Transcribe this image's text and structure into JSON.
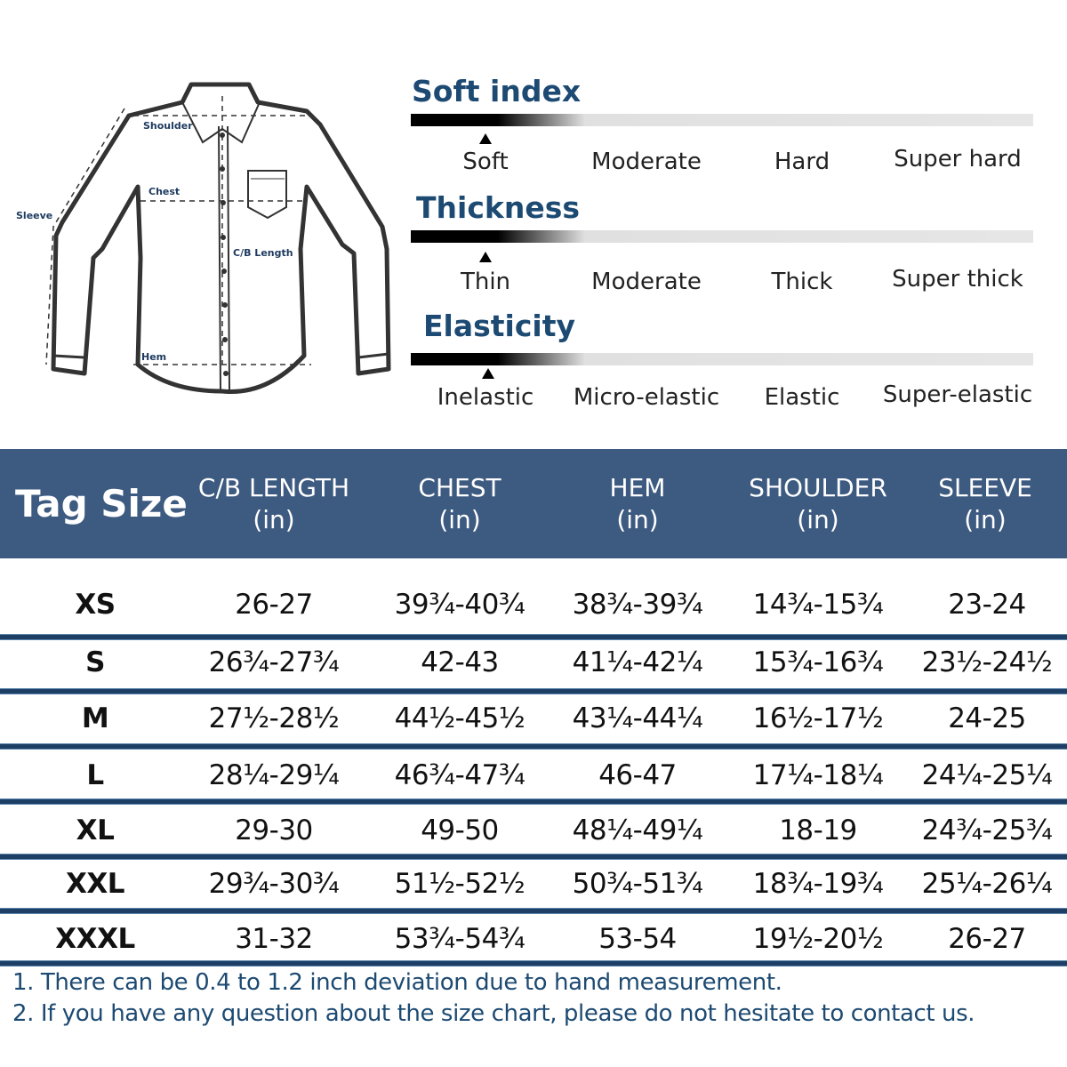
{
  "diagram": {
    "labels": {
      "shoulder": "Shoulder",
      "chest": "Chest",
      "sleeve": "Sleeve",
      "cb_length": "C/B Length",
      "hem": "Hem"
    }
  },
  "scales": [
    {
      "title": "Soft index",
      "options": [
        "Soft",
        "Moderate",
        "Hard",
        "Super hard"
      ],
      "selected": "Soft"
    },
    {
      "title": "Thickness",
      "options": [
        "Thin",
        "Moderate",
        "Thick",
        "Super thick"
      ],
      "selected": "Thin"
    },
    {
      "title": "Elasticity",
      "options": [
        "Inelastic",
        "Micro-elastic",
        "Elastic",
        "Super-elastic"
      ],
      "selected": "Inelastic"
    }
  ],
  "table": {
    "header_color": "#3d5a80",
    "tag_size_label": "Tag Size",
    "columns": [
      {
        "name": "C/B LENGTH",
        "unit": "(in)"
      },
      {
        "name": "CHEST",
        "unit": "(in)"
      },
      {
        "name": "HEM",
        "unit": "(in)"
      },
      {
        "name": "SHOULDER",
        "unit": "(in)"
      },
      {
        "name": "SLEEVE",
        "unit": "(in)"
      }
    ],
    "rows": [
      {
        "size": "XS",
        "values": [
          "26-27",
          "39¾-40¾",
          "38¾-39¾",
          "14¾-15¾",
          "23-24"
        ]
      },
      {
        "size": "S",
        "values": [
          "26¾-27¾",
          "42-43",
          "41¼-42¼",
          "15¾-16¾",
          "23½-24½"
        ]
      },
      {
        "size": "M",
        "values": [
          "27½-28½",
          "44½-45½",
          "43¼-44¼",
          "16½-17½",
          "24-25"
        ]
      },
      {
        "size": "L",
        "values": [
          "28¼-29¼",
          "46¾-47¾",
          "46-47",
          "17¼-18¼",
          "24¼-25¼"
        ]
      },
      {
        "size": "XL",
        "values": [
          "29-30",
          "49-50",
          "48¼-49¼",
          "18-19",
          "24¾-25¾"
        ]
      },
      {
        "size": "XXL",
        "values": [
          "29¾-30¾",
          "51½-52½",
          "50¾-51¾",
          "18¾-19¾",
          "25¼-26¼"
        ]
      },
      {
        "size": "XXXL",
        "values": [
          "31-32",
          "53¾-54¾",
          "53-54",
          "19½-20½",
          "26-27"
        ]
      }
    ]
  },
  "notes": [
    "1. There can be 0.4 to 1.2 inch deviation due to hand measurement.",
    "2. If you have any question about the size chart, please do not hesitate to contact us."
  ]
}
